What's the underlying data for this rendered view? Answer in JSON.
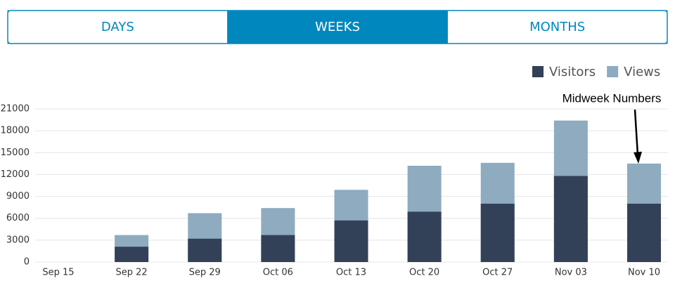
{
  "tabs": [
    {
      "label": "DAYS",
      "selected": false
    },
    {
      "label": "WEEKS",
      "selected": true
    },
    {
      "label": "MONTHS",
      "selected": false
    }
  ],
  "chart_data": {
    "type": "bar",
    "categories": [
      "Sep 15",
      "Sep 22",
      "Sep 29",
      "Oct 06",
      "Oct 13",
      "Oct 20",
      "Oct 27",
      "Nov 03",
      "Nov 10"
    ],
    "series": [
      {
        "name": "Visitors",
        "color": "#334158",
        "values": [
          0,
          2100,
          3200,
          3700,
          5700,
          6900,
          8000,
          11800,
          8000
        ]
      },
      {
        "name": "Views",
        "color": "#8eabbf",
        "values": [
          0,
          3700,
          6700,
          7400,
          9900,
          13200,
          13600,
          19400,
          13500
        ]
      }
    ],
    "ylim": [
      0,
      21000
    ],
    "yticks": [
      0,
      3000,
      6000,
      9000,
      12000,
      15000,
      18000,
      21000
    ],
    "grid": true,
    "legend": "top-right",
    "annotation": {
      "text": "Midweek Numbers",
      "category": 8
    }
  }
}
